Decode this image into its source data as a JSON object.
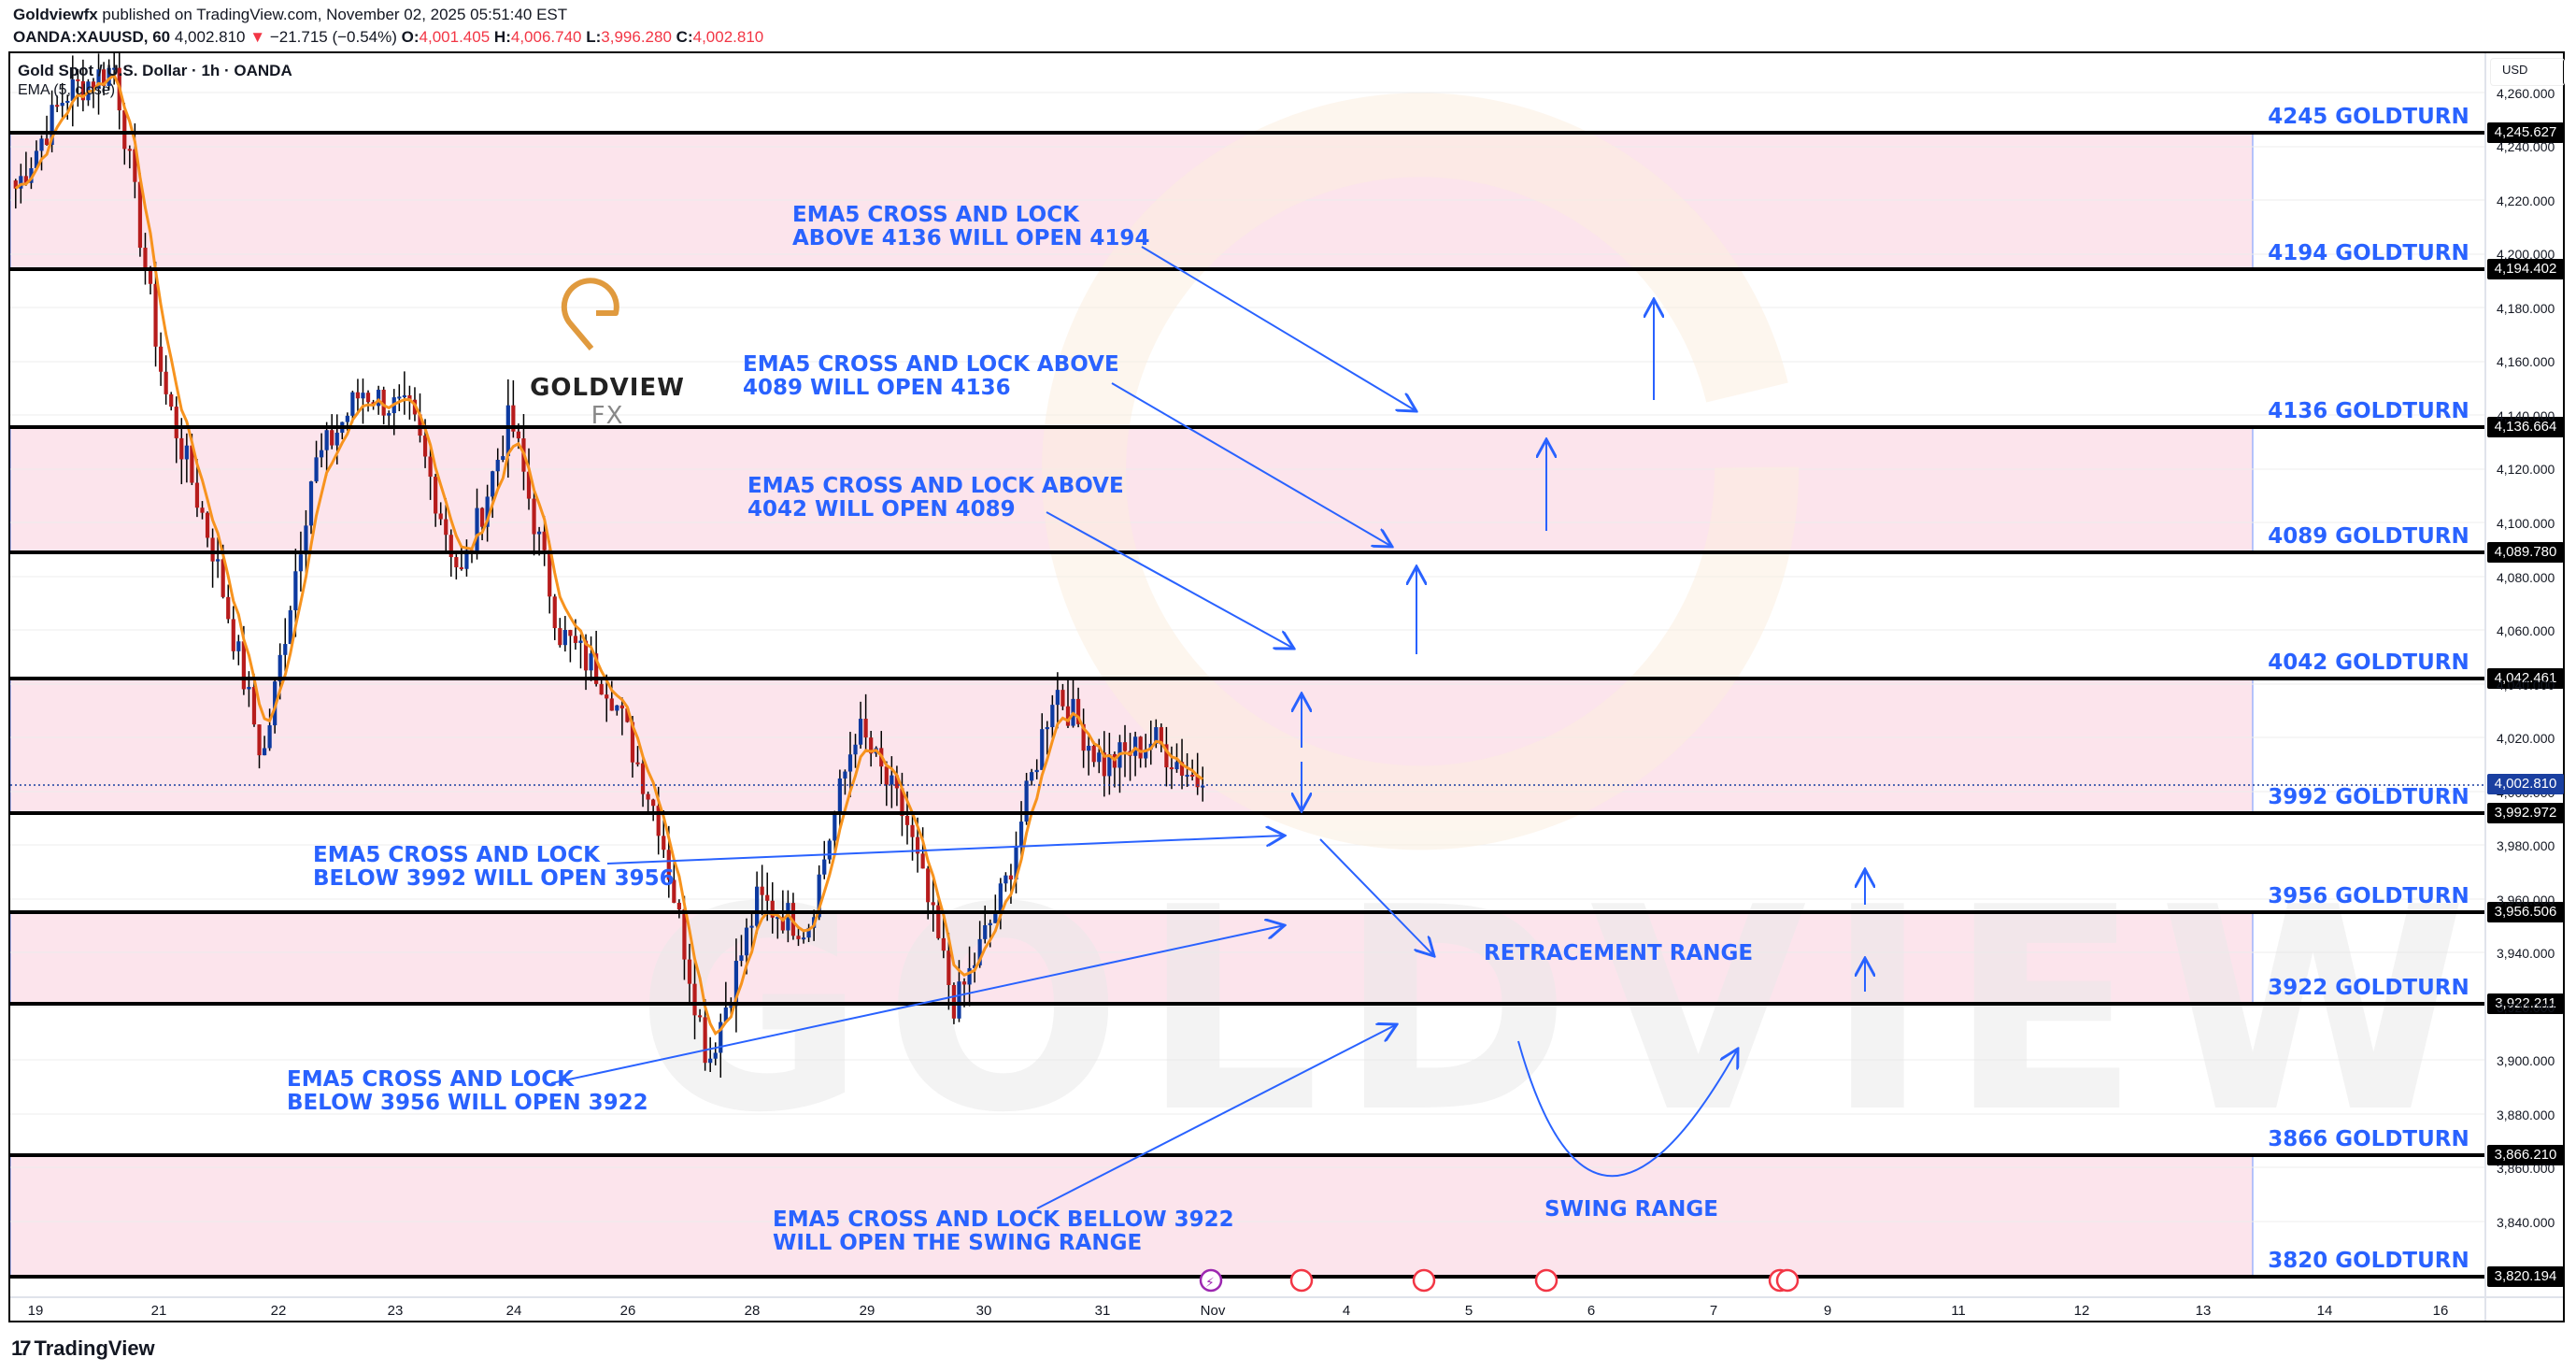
{
  "header": {
    "publisher": "Goldviewfx",
    "published_text": "published on TradingView.com, November 02, 2025 05:51:40 EST",
    "symbol": "OANDA:XAUUSD, 60",
    "last": "4,002.810",
    "change": "−21.715 (−0.54%)",
    "change_icon": "triangle-down-icon",
    "o_label": "O:",
    "o": "4,001.405",
    "h_label": "H:",
    "h": "4,006.740",
    "l_label": "L:",
    "l": "3,996.280",
    "c_label": "C:",
    "c": "4,002.810"
  },
  "legend": {
    "title": "Gold Spot / U.S. Dollar · 1h · OANDA",
    "indicator": "EMA (5, close)"
  },
  "brand": {
    "name_main": "GOLDVIEW",
    "name_suffix": "FX",
    "watermark": "GOLDVIEW FX"
  },
  "axis": {
    "currency": "USD",
    "price_ticks": [
      "4,260.000",
      "4,240.000",
      "4,220.000",
      "4,200.000",
      "4,180.000",
      "4,160.000",
      "4,140.000",
      "4,120.000",
      "4,100.000",
      "4,080.000",
      "4,060.000",
      "4,040.000",
      "4,020.000",
      "4,000.000",
      "3,980.000",
      "3,960.000",
      "3,940.000",
      "3,920.000",
      "3,900.000",
      "3,880.000",
      "3,860.000",
      "3,840.000"
    ],
    "date_ticks": [
      "19",
      "21",
      "22",
      "23",
      "24",
      "26",
      "28",
      "29",
      "30",
      "31",
      "Nov",
      "4",
      "5",
      "6",
      "7",
      "9",
      "11",
      "12",
      "13",
      "14",
      "16"
    ]
  },
  "levels": [
    {
      "label": "4245 GOLDTURN",
      "price_tag": "4,245.627"
    },
    {
      "label": "4194 GOLDTURN",
      "price_tag": "4,194.402"
    },
    {
      "label": "4136 GOLDTURN",
      "price_tag": "4,136.664"
    },
    {
      "label": "4089 GOLDTURN",
      "price_tag": "4,089.780"
    },
    {
      "label": "4042 GOLDTURN",
      "price_tag": "4,042.461"
    },
    {
      "label": "3992 GOLDTURN",
      "price_tag": "3,992.972"
    },
    {
      "label": "3956 GOLDTURN",
      "price_tag": "3,956.506"
    },
    {
      "label": "3922 GOLDTURN",
      "price_tag": "3,922.211"
    },
    {
      "label": "3866 GOLDTURN",
      "price_tag": "3,866.210"
    },
    {
      "label": "3820 GOLDTURN",
      "price_tag": "3,820.194"
    }
  ],
  "current_price_tag": "4,002.810",
  "annotations": {
    "a4194_l1": "EMA5 CROSS AND LOCK",
    "a4194_l2": "ABOVE 4136 WILL OPEN 4194",
    "a4136_l1": "EMA5 CROSS AND LOCK ABOVE",
    "a4136_l2": "4089 WILL OPEN 4136",
    "a4089_l1": "EMA5 CROSS AND LOCK ABOVE",
    "a4089_l2": "4042 WILL OPEN 4089",
    "a3956_l1": "EMA5 CROSS AND LOCK",
    "a3956_l2": "BELOW 3992 WILL OPEN 3956",
    "a3922_l1": "EMA5 CROSS AND LOCK",
    "a3922_l2": "BELOW 3956 WILL OPEN 3922",
    "aswing_l1": "EMA5 CROSS AND LOCK BELLOW 3922",
    "aswing_l2": "WILL OPEN THE SWING RANGE",
    "retracement": "RETRACEMENT RANGE",
    "swing": "SWING RANGE"
  },
  "footer": {
    "logo_mark": "17",
    "logo_text": "TradingView"
  },
  "colors": {
    "annotation_blue": "#2962ff",
    "band_pink": "#fce4ec",
    "candle_up": "#0d3aa0",
    "candle_down": "#b71c1c",
    "ema": "#f7931e",
    "logo_gold": "#e09a3e",
    "change_red": "#f23645"
  },
  "chart_data": {
    "type": "candlestick",
    "title": "Gold Spot / U.S. Dollar · 1h · OANDA",
    "symbol": "OANDA:XAUUSD",
    "timeframe": "60",
    "indicator": "EMA (5, close)",
    "ylabel": "USD",
    "ylim": [
      3812,
      4270
    ],
    "x_ticks": [
      "19",
      "21",
      "22",
      "23",
      "24",
      "26",
      "28",
      "29",
      "30",
      "31",
      "Nov",
      "4",
      "5",
      "6",
      "7",
      "9",
      "11",
      "12",
      "13",
      "14",
      "16"
    ],
    "last": {
      "open": 4001.405,
      "high": 4006.74,
      "low": 3996.28,
      "close": 4002.81,
      "change": -21.715,
      "change_pct": -0.54
    },
    "horizontal_levels": [
      4245.627,
      4194.402,
      4136.664,
      4089.78,
      4042.461,
      3992.972,
      3956.506,
      3922.211,
      3866.21,
      3820.194
    ],
    "shaded_bands": [
      [
        4194.402,
        4245.627
      ],
      [
        4089.78,
        4136.664
      ],
      [
        3992.972,
        4042.461
      ],
      [
        3922.211,
        3956.506
      ],
      [
        3820.194,
        3866.21
      ]
    ],
    "approx_price_path": [
      {
        "date": "19",
        "price": 4225
      },
      {
        "date": "20",
        "price": 4260
      },
      {
        "date": "21",
        "price": 4270
      },
      {
        "date": "21b",
        "price": 4150
      },
      {
        "date": "22",
        "price": 4090
      },
      {
        "date": "22b",
        "price": 4012
      },
      {
        "date": "23",
        "price": 4120
      },
      {
        "date": "23b",
        "price": 4150
      },
      {
        "date": "24",
        "price": 4140
      },
      {
        "date": "24b",
        "price": 4080
      },
      {
        "date": "26",
        "price": 4140
      },
      {
        "date": "26b",
        "price": 4060
      },
      {
        "date": "27",
        "price": 4040
      },
      {
        "date": "27b",
        "price": 3990
      },
      {
        "date": "28",
        "price": 3900
      },
      {
        "date": "28b",
        "price": 3960
      },
      {
        "date": "29",
        "price": 3950
      },
      {
        "date": "29b",
        "price": 4025
      },
      {
        "date": "30",
        "price": 3990
      },
      {
        "date": "30b",
        "price": 3920
      },
      {
        "date": "30c",
        "price": 3965
      },
      {
        "date": "31",
        "price": 4040
      },
      {
        "date": "31b",
        "price": 4010
      },
      {
        "date": "31c",
        "price": 4020
      },
      {
        "date": "Nov",
        "price": 4002.81
      }
    ]
  }
}
